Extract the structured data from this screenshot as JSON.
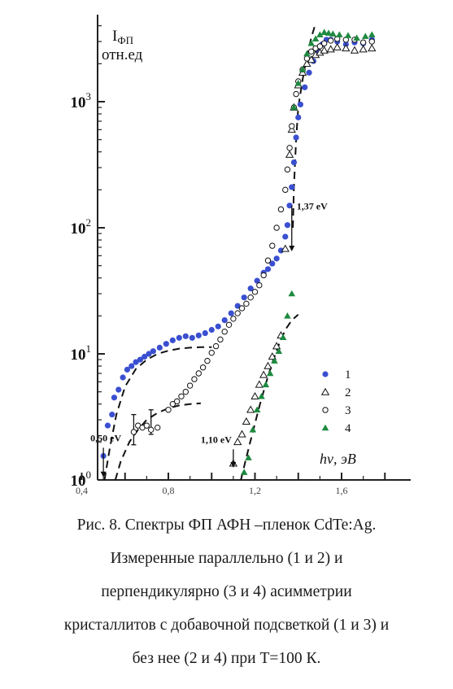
{
  "chart_data": {
    "type": "scatter",
    "ylabel_line1": "I",
    "ylabel_sub": "ФП",
    "ylabel_line2": "отн.ед",
    "xlabel": "hν, эВ",
    "xlim": [
      0.4,
      1.8
    ],
    "y_scale": "log",
    "ylim": [
      1,
      4000
    ],
    "x_ticks": [
      "0,4",
      "0,8",
      "1,2",
      "1,6"
    ],
    "x_tick_values": [
      0.4,
      0.8,
      1.2,
      1.6
    ],
    "y_ticks": [
      {
        "base": "10",
        "exp": "0",
        "value": 1
      },
      {
        "base": "10",
        "exp": "1",
        "value": 10
      },
      {
        "base": "10",
        "exp": "2",
        "value": 100
      },
      {
        "base": "10",
        "exp": "3",
        "value": 1000
      }
    ],
    "grid": false,
    "legend_position": "right",
    "colors": {
      "blue": "#3a4fd0",
      "green": "#1e8a40",
      "black": "#111111"
    },
    "series": [
      {
        "name": "1",
        "marker": "filled-circle",
        "color": "#3a4fd0",
        "points": [
          [
            0.5,
            1.55
          ],
          [
            0.52,
            2.7
          ],
          [
            0.54,
            3.3
          ],
          [
            0.55,
            4.5
          ],
          [
            0.57,
            5.2
          ],
          [
            0.59,
            6.5
          ],
          [
            0.61,
            7.5
          ],
          [
            0.63,
            8.0
          ],
          [
            0.65,
            8.6
          ],
          [
            0.67,
            9.0
          ],
          [
            0.69,
            9.5
          ],
          [
            0.71,
            10.0
          ],
          [
            0.73,
            10.5
          ],
          [
            0.76,
            11.2
          ],
          [
            0.79,
            12.0
          ],
          [
            0.82,
            12.8
          ],
          [
            0.85,
            13.4
          ],
          [
            0.88,
            13.8
          ],
          [
            0.91,
            13.4
          ],
          [
            0.94,
            14.0
          ],
          [
            0.97,
            14.6
          ],
          [
            1.0,
            15.5
          ],
          [
            1.03,
            16.5
          ],
          [
            1.06,
            18.5
          ],
          [
            1.09,
            21
          ],
          [
            1.12,
            24
          ],
          [
            1.15,
            28
          ],
          [
            1.18,
            33
          ],
          [
            1.21,
            38
          ],
          [
            1.24,
            44
          ],
          [
            1.26,
            47
          ],
          [
            1.28,
            52
          ],
          [
            1.3,
            57
          ],
          [
            1.32,
            66
          ],
          [
            1.34,
            85
          ],
          [
            1.35,
            105
          ],
          [
            1.36,
            150
          ],
          [
            1.37,
            210
          ],
          [
            1.38,
            330
          ],
          [
            1.39,
            520
          ],
          [
            1.4,
            750
          ],
          [
            1.41,
            950
          ],
          [
            1.43,
            1300
          ],
          [
            1.45,
            1700
          ],
          [
            1.47,
            2100
          ],
          [
            1.49,
            2500
          ],
          [
            1.51,
            2850
          ],
          [
            1.53,
            3100
          ],
          [
            1.55,
            3100
          ],
          [
            1.58,
            3000
          ],
          [
            1.62,
            2850
          ],
          [
            1.66,
            2950
          ],
          [
            1.7,
            2900
          ],
          [
            1.74,
            3100
          ]
        ]
      },
      {
        "name": "2",
        "marker": "open-triangle",
        "color": "#111111",
        "points": [
          [
            1.1,
            1.35
          ],
          [
            1.12,
            2.0
          ],
          [
            1.14,
            2.3
          ],
          [
            1.16,
            2.9
          ],
          [
            1.18,
            3.6
          ],
          [
            1.2,
            4.6
          ],
          [
            1.22,
            5.7
          ],
          [
            1.24,
            6.8
          ],
          [
            1.26,
            8.0
          ],
          [
            1.28,
            9.5
          ],
          [
            1.3,
            11.5
          ],
          [
            1.32,
            14
          ],
          [
            1.34,
            68
          ],
          [
            1.36,
            380
          ],
          [
            1.37,
            600
          ],
          [
            1.38,
            900
          ],
          [
            1.4,
            1350
          ],
          [
            1.42,
            1700
          ],
          [
            1.44,
            2000
          ],
          [
            1.46,
            2150
          ],
          [
            1.48,
            2350
          ],
          [
            1.5,
            2450
          ],
          [
            1.52,
            2550
          ],
          [
            1.55,
            2600
          ],
          [
            1.58,
            2700
          ],
          [
            1.62,
            2650
          ],
          [
            1.66,
            2550
          ],
          [
            1.7,
            2600
          ],
          [
            1.74,
            2650
          ]
        ]
      },
      {
        "name": "3",
        "marker": "open-circle",
        "color": "#111111",
        "points": [
          [
            0.64,
            2.4
          ],
          [
            0.66,
            2.7
          ],
          [
            0.68,
            2.6
          ],
          [
            0.7,
            2.7
          ],
          [
            0.72,
            2.5
          ],
          [
            0.75,
            2.6
          ],
          [
            0.8,
            3.6
          ],
          [
            0.82,
            4.0
          ],
          [
            0.84,
            4.2
          ],
          [
            0.86,
            4.6
          ],
          [
            0.88,
            5.0
          ],
          [
            0.9,
            5.6
          ],
          [
            0.92,
            6.3
          ],
          [
            0.94,
            7.0
          ],
          [
            0.96,
            7.8
          ],
          [
            0.98,
            8.8
          ],
          [
            1.0,
            10.2
          ],
          [
            1.02,
            11.5
          ],
          [
            1.04,
            13.0
          ],
          [
            1.06,
            15
          ],
          [
            1.08,
            17
          ],
          [
            1.1,
            19
          ],
          [
            1.12,
            21
          ],
          [
            1.14,
            23
          ],
          [
            1.16,
            25
          ],
          [
            1.18,
            28
          ],
          [
            1.2,
            31
          ],
          [
            1.22,
            35
          ],
          [
            1.24,
            42
          ],
          [
            1.26,
            55
          ],
          [
            1.28,
            72
          ],
          [
            1.3,
            100
          ],
          [
            1.32,
            140
          ],
          [
            1.34,
            200
          ],
          [
            1.35,
            290
          ],
          [
            1.36,
            430
          ],
          [
            1.37,
            640
          ],
          [
            1.38,
            900
          ],
          [
            1.39,
            1150
          ],
          [
            1.4,
            1450
          ],
          [
            1.42,
            1800
          ],
          [
            1.44,
            2200
          ],
          [
            1.46,
            2500
          ],
          [
            1.48,
            2650
          ],
          [
            1.5,
            2750
          ],
          [
            1.52,
            2900
          ],
          [
            1.55,
            3050
          ],
          [
            1.58,
            3150
          ],
          [
            1.62,
            3100
          ],
          [
            1.66,
            3100
          ],
          [
            1.7,
            2950
          ],
          [
            1.74,
            3000
          ]
        ]
      },
      {
        "name": "4",
        "marker": "filled-triangle",
        "color": "#1e8a40",
        "points": [
          [
            1.15,
            1.15
          ],
          [
            1.17,
            1.5
          ],
          [
            1.19,
            2.5
          ],
          [
            1.21,
            3.6
          ],
          [
            1.23,
            4.6
          ],
          [
            1.25,
            5.7
          ],
          [
            1.27,
            7.0
          ],
          [
            1.29,
            8.8
          ],
          [
            1.31,
            10.5
          ],
          [
            1.33,
            13.5
          ],
          [
            1.35,
            20
          ],
          [
            1.37,
            30
          ],
          [
            1.38,
            900
          ],
          [
            1.4,
            1400
          ],
          [
            1.42,
            1800
          ],
          [
            1.44,
            2400
          ],
          [
            1.46,
            2900
          ],
          [
            1.48,
            3150
          ],
          [
            1.5,
            3400
          ],
          [
            1.52,
            3550
          ],
          [
            1.54,
            3500
          ],
          [
            1.56,
            3450
          ],
          [
            1.59,
            3400
          ],
          [
            1.63,
            3350
          ],
          [
            1.67,
            3200
          ],
          [
            1.71,
            3300
          ],
          [
            1.74,
            3400
          ]
        ]
      }
    ],
    "fit_curves": [
      {
        "points": [
          [
            0.505,
            1.0
          ],
          [
            0.53,
            1.8
          ],
          [
            0.56,
            3.3
          ],
          [
            0.6,
            5.5
          ],
          [
            0.65,
            7.6
          ],
          [
            0.7,
            9.0
          ],
          [
            0.75,
            10.0
          ],
          [
            0.8,
            10.6
          ],
          [
            0.85,
            11.0
          ],
          [
            0.9,
            11.2
          ],
          [
            0.95,
            11.3
          ],
          [
            1.0,
            11.3
          ]
        ]
      },
      {
        "points": [
          [
            0.555,
            1.0
          ],
          [
            0.58,
            1.4
          ],
          [
            0.62,
            2.0
          ],
          [
            0.66,
            2.5
          ],
          [
            0.7,
            3.0
          ],
          [
            0.75,
            3.4
          ],
          [
            0.8,
            3.7
          ],
          [
            0.85,
            3.9
          ],
          [
            0.9,
            4.0
          ],
          [
            0.95,
            4.05
          ]
        ]
      },
      {
        "points": [
          [
            1.135,
            1.0
          ],
          [
            1.16,
            1.5
          ],
          [
            1.19,
            2.4
          ],
          [
            1.22,
            3.8
          ],
          [
            1.25,
            5.8
          ],
          [
            1.28,
            8.5
          ],
          [
            1.31,
            11.8
          ],
          [
            1.34,
            15.5
          ],
          [
            1.37,
            18.5
          ],
          [
            1.4,
            20.5
          ]
        ]
      },
      {
        "points": [
          [
            1.375,
            100
          ],
          [
            1.38,
            210
          ],
          [
            1.39,
            500
          ],
          [
            1.4,
            900
          ],
          [
            1.42,
            1500
          ],
          [
            1.44,
            2300
          ],
          [
            1.46,
            3200
          ],
          [
            1.48,
            4200
          ]
        ]
      }
    ],
    "annotations": [
      {
        "text": "0,50 eV",
        "arrow_x": 0.5,
        "arrow_y_top": 1.8,
        "arrow_y_bottom": 1.05
      },
      {
        "text": "1,10 eV",
        "arrow_x": 1.1,
        "arrow_y_top": 1.75,
        "arrow_y_bottom": 1.25
      },
      {
        "text": "1,37 eV",
        "arrow_x": 1.37,
        "arrow_y_top": 150,
        "arrow_y_bottom": 65
      }
    ],
    "error_bars": [
      {
        "x": 0.64,
        "y": 2.5,
        "low": 1.9,
        "high": 3.3
      },
      {
        "x": 0.72,
        "y": 2.9,
        "low": 2.3,
        "high": 3.6
      }
    ]
  },
  "caption": [
    "Рис.   8. Спектры ФП АФН –пленок CdTe:Ag.",
    "Измеренные параллельно (1 и 2) и",
    "перпендикулярно (3 и 4) асимметрии",
    "кристаллитов с добавочной подсветкой (1 и 3) и",
    "без нее (2 и 4) при T=100 К."
  ]
}
